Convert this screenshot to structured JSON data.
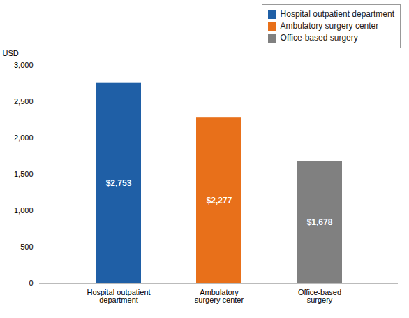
{
  "chart_data": {
    "type": "bar",
    "categories": [
      "Hospital outpatient\ndepartment",
      "Ambulatory\nsurgery center",
      "Office-based\nsurgery"
    ],
    "values": [
      2753,
      2277,
      1678
    ],
    "value_labels": [
      "$2,753",
      "$2,277",
      "$1,678"
    ],
    "colors": [
      "#1f5fa6",
      "#e8701a",
      "#808080"
    ],
    "legend_labels": [
      "Hospital outpatient department",
      "Ambulatory surgery center",
      "Office-based surgery"
    ],
    "legend": "upper right",
    "ylabel": "USD",
    "ylim": [
      0,
      3000
    ],
    "yticks": [
      0,
      500,
      {
        "value": 1000,
        "label": "1,000"
      },
      {
        "value": 1500,
        "label": "1,500"
      },
      {
        "value": 2000,
        "label": "2,000"
      },
      {
        "value": 2500,
        "label": "2,500"
      },
      {
        "value": 3000,
        "label": "3,000"
      }
    ],
    "data_labels": true,
    "grid": false
  }
}
